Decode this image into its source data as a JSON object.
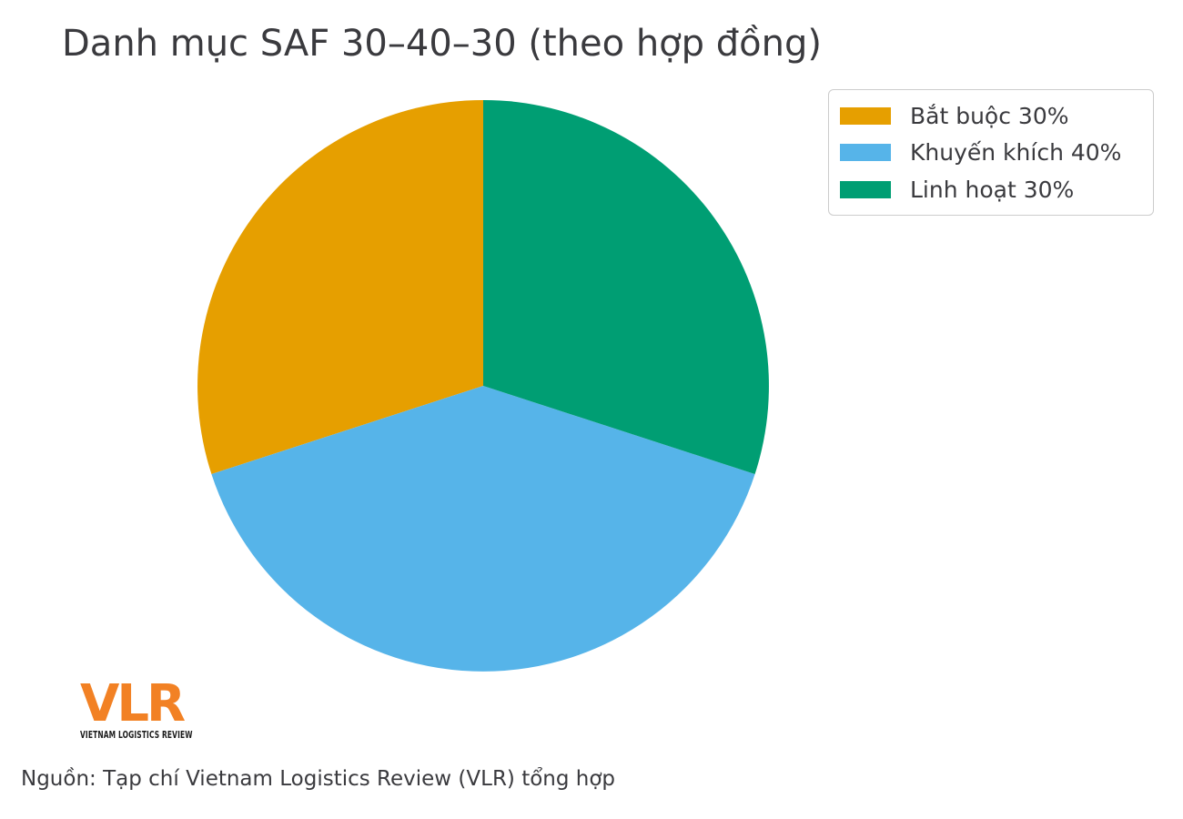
{
  "chart_data": {
    "type": "pie",
    "title": "Danh mục SAF 30–40–30 (theo hợp đồng)",
    "labels": [
      "Bắt buộc",
      "Khuyến khích",
      "Linh hoạt"
    ],
    "values": [
      30,
      40,
      30
    ],
    "unit": "%",
    "colors": [
      "#E69F00",
      "#56B4E9",
      "#009E73"
    ],
    "legend_labels": [
      "Bắt buộc 30%",
      "Khuyến khích 40%",
      "Linh hoạt 30%"
    ],
    "legend_position": "upper right",
    "start_angle": 90,
    "direction": "counterclockwise",
    "grid": false
  },
  "branding": {
    "logo_text": "VLR",
    "logo_tagline": "VIETNAM LOGISTICS REVIEW",
    "logo_color": "#F28124"
  },
  "source": {
    "text": "Nguồn: Tạp chí Vietnam Logistics Review (VLR) tổng hợp"
  },
  "palette": {
    "background": "#FFFFFF",
    "text": "#3A3A3E",
    "legend_border": "#CCCCCC"
  }
}
